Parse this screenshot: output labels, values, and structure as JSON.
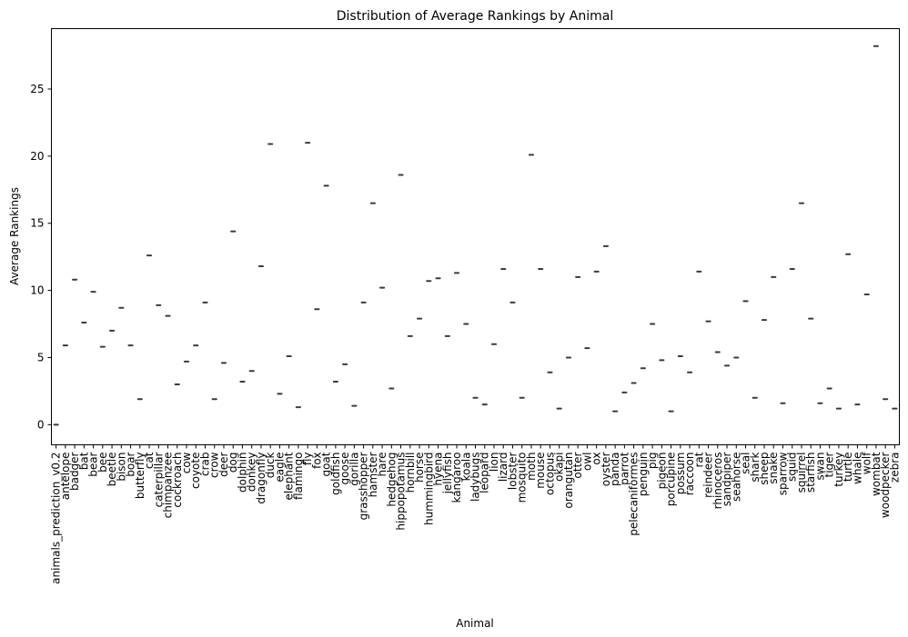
{
  "chart_data": {
    "type": "box",
    "title": "Distribution of Average Rankings by Animal",
    "xlabel": "Animal",
    "ylabel": "Average Rankings",
    "ylim": [
      -1.5,
      29.5
    ],
    "yticks": [
      0,
      5,
      10,
      15,
      20,
      25
    ],
    "grid": false,
    "categories": [
      "animals_prediction_v0.2",
      "antelope",
      "badger",
      "bat",
      "bear",
      "bee",
      "beetle",
      "bison",
      "boar",
      "butterfly",
      "cat",
      "caterpillar",
      "chimpanzee",
      "cockroach",
      "cow",
      "coyote",
      "crab",
      "crow",
      "deer",
      "dog",
      "dolphin",
      "donkey",
      "dragonfly",
      "duck",
      "eagle",
      "elephant",
      "flamingo",
      "fly",
      "fox",
      "goat",
      "goldfish",
      "goose",
      "gorilla",
      "grasshopper",
      "hamster",
      "hare",
      "hedgehog",
      "hippopotamus",
      "hornbill",
      "horse",
      "hummingbird",
      "hyena",
      "jellyfish",
      "kangaroo",
      "koala",
      "ladybugs",
      "leopard",
      "lion",
      "lizard",
      "lobster",
      "mosquito",
      "moth",
      "mouse",
      "octopus",
      "okapi",
      "orangutan",
      "otter",
      "owl",
      "ox",
      "oyster",
      "panda",
      "parrot",
      "pelecaniformes",
      "penguin",
      "pig",
      "pigeon",
      "porcupine",
      "possum",
      "raccoon",
      "rat",
      "reindeer",
      "rhinoceros",
      "sandpiper",
      "seahorse",
      "seal",
      "shark",
      "sheep",
      "snake",
      "sparrow",
      "squid",
      "squirrel",
      "starfish",
      "swan",
      "tiger",
      "turkey",
      "turtle",
      "whale",
      "wolf",
      "wombat",
      "woodpecker",
      "zebra"
    ],
    "values": [
      0.0,
      5.9,
      10.8,
      7.6,
      9.9,
      5.8,
      7.0,
      8.7,
      5.9,
      1.9,
      12.6,
      8.9,
      8.1,
      3.0,
      4.7,
      5.9,
      9.1,
      1.9,
      4.6,
      14.4,
      3.2,
      4.0,
      11.8,
      20.9,
      2.3,
      5.1,
      1.3,
      21.0,
      8.6,
      17.8,
      3.2,
      4.5,
      1.4,
      9.1,
      16.5,
      10.2,
      2.7,
      18.6,
      6.6,
      7.9,
      10.7,
      10.9,
      6.6,
      11.3,
      7.5,
      2.0,
      1.5,
      6.0,
      11.6,
      9.1,
      2.0,
      20.1,
      11.6,
      3.9,
      1.2,
      5.0,
      11.0,
      5.7,
      11.4,
      13.3,
      1.0,
      2.4,
      3.1,
      4.2,
      7.5,
      4.8,
      1.0,
      5.1,
      3.9,
      11.4,
      7.7,
      5.4,
      4.4,
      5.0,
      9.2,
      2.0,
      7.8,
      11.0,
      1.6,
      11.6,
      16.5,
      7.9,
      1.6,
      2.7,
      1.2,
      12.7,
      1.5,
      9.7,
      28.2,
      1.9,
      1.2
    ],
    "box_color": "#3a3a3a"
  }
}
